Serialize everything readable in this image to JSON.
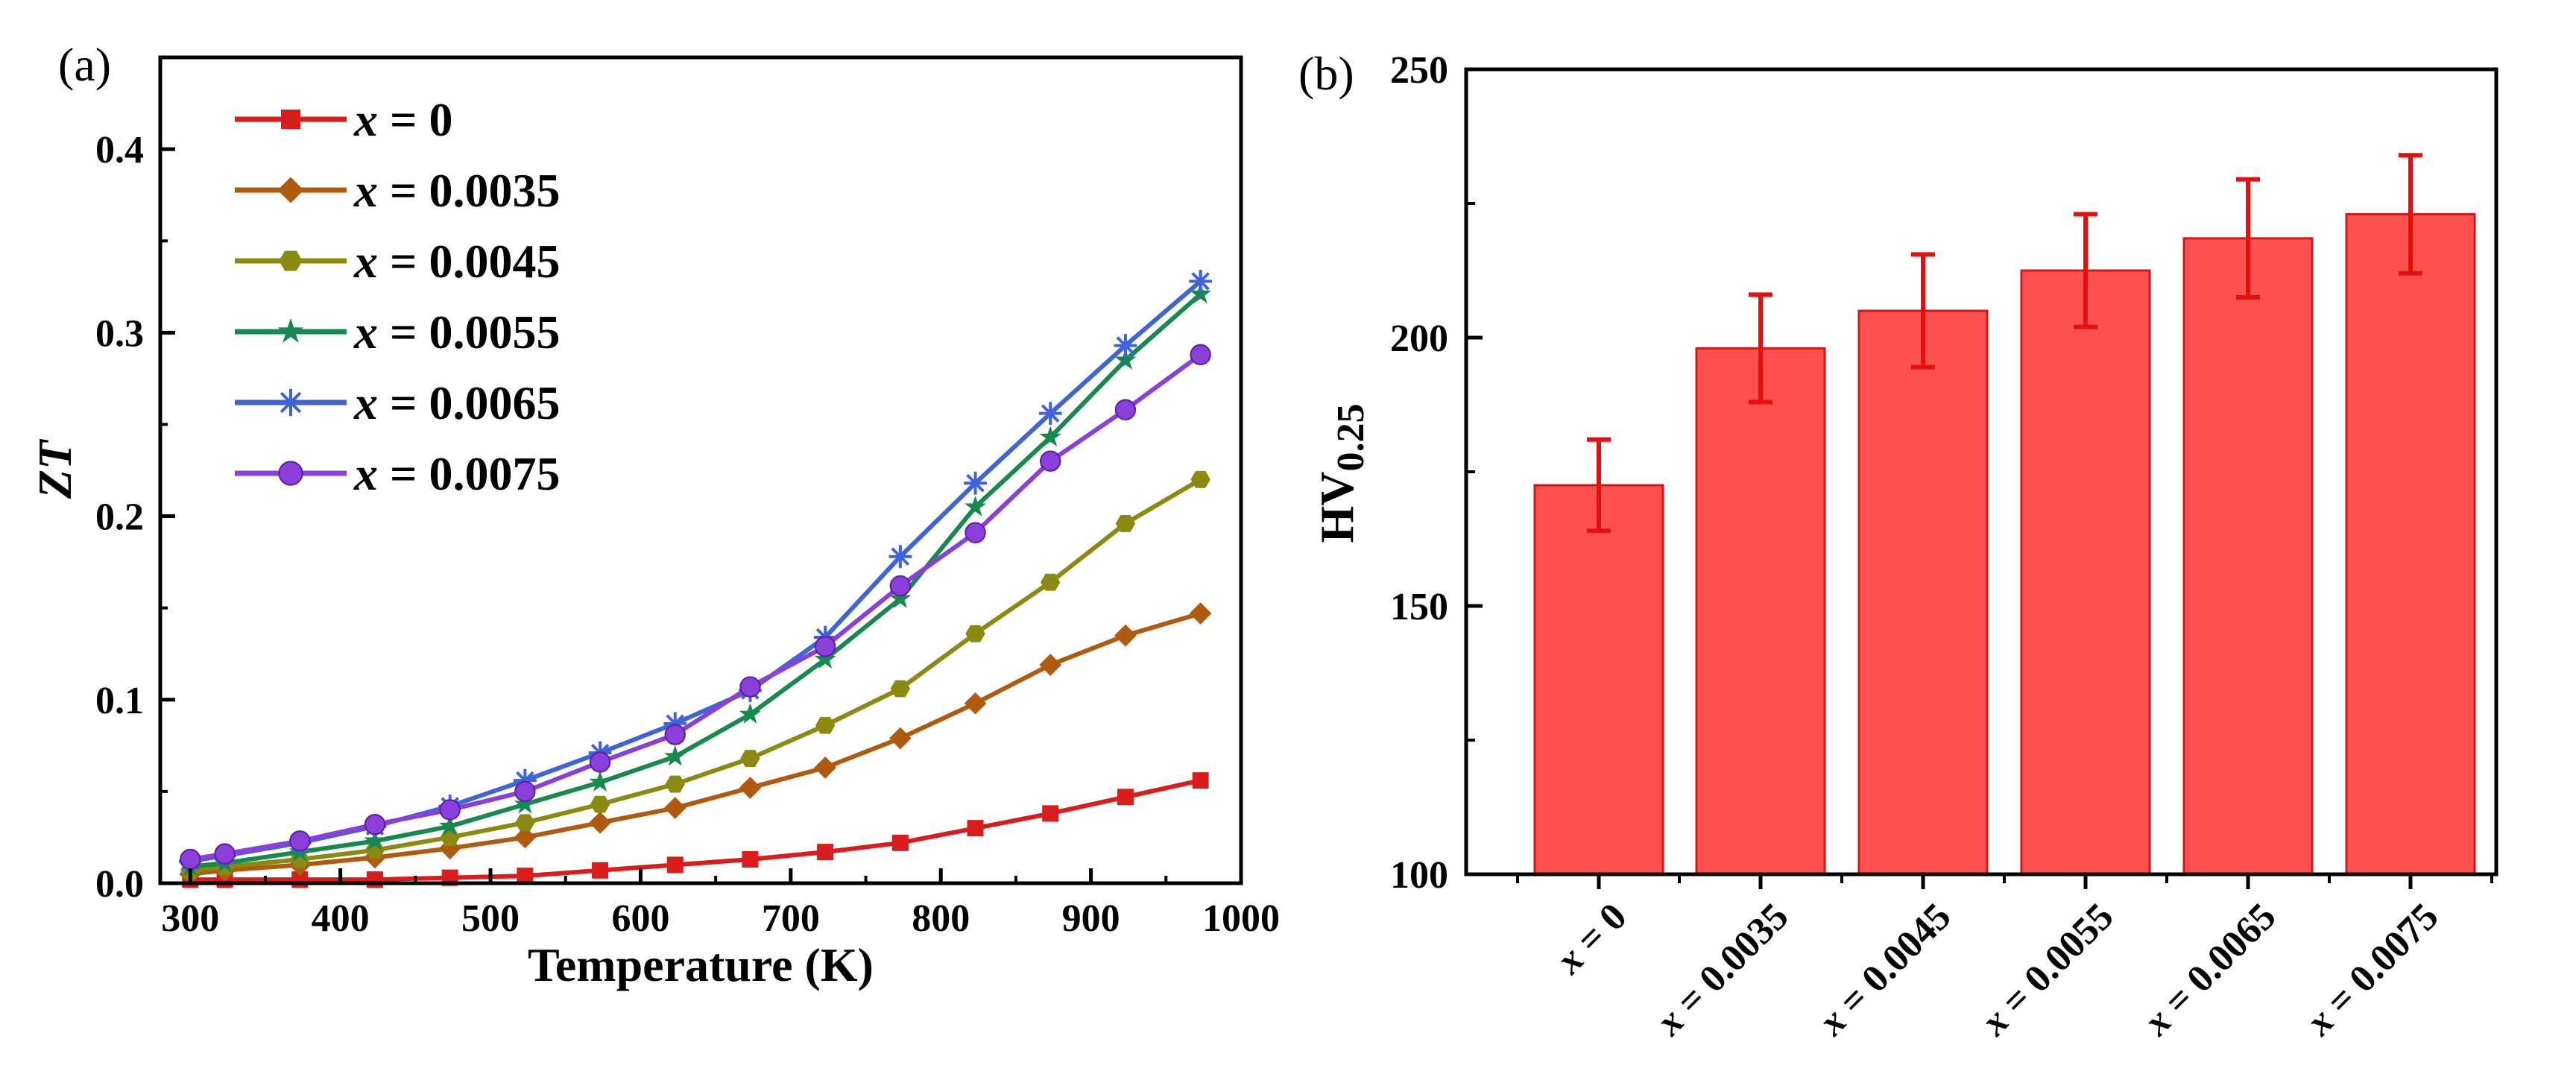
{
  "chart_data": [
    {
      "panel": "(a)",
      "type": "line",
      "xlabel": "Temperature (K)",
      "ylabel": "ZT",
      "xlim": [
        280,
        1000
      ],
      "ylim": [
        0,
        0.45
      ],
      "xticks": [
        "300",
        "400",
        "500",
        "600",
        "700",
        "800",
        "900",
        "1000"
      ],
      "yticks": [
        "0.0",
        "0.1",
        "0.2",
        "0.3",
        "0.4"
      ],
      "legend_position": "top-left",
      "x": [
        300,
        323,
        373,
        423,
        473,
        523,
        573,
        623,
        673,
        723,
        773,
        823,
        873,
        923,
        973
      ],
      "series": [
        {
          "name_var": "x",
          "name_val": " = 0",
          "color": "#d91c1c",
          "marker": "square",
          "values": [
            0.002,
            0.002,
            0.002,
            0.002,
            0.003,
            0.004,
            0.007,
            0.01,
            0.013,
            0.017,
            0.022,
            0.03,
            0.038,
            0.047,
            0.056
          ]
        },
        {
          "name_var": "x",
          "name_val": " = 0.0035",
          "color": "#b05a10",
          "marker": "diamond",
          "values": [
            0.005,
            0.007,
            0.01,
            0.014,
            0.019,
            0.025,
            0.033,
            0.041,
            0.052,
            0.063,
            0.079,
            0.098,
            0.119,
            0.135,
            0.147
          ]
        },
        {
          "name_var": "x",
          "name_val": " = 0.0045",
          "color": "#8a8a10",
          "marker": "hexagon",
          "values": [
            0.007,
            0.009,
            0.013,
            0.018,
            0.025,
            0.033,
            0.043,
            0.054,
            0.068,
            0.086,
            0.106,
            0.136,
            0.164,
            0.196,
            0.22
          ]
        },
        {
          "name_var": "x",
          "name_val": " = 0.0055",
          "color": "#17894f",
          "marker": "star",
          "values": [
            0.009,
            0.011,
            0.017,
            0.023,
            0.031,
            0.043,
            0.055,
            0.069,
            0.092,
            0.122,
            0.155,
            0.205,
            0.243,
            0.285,
            0.321
          ]
        },
        {
          "name_var": "x",
          "name_val": " = 0.0065",
          "color": "#3f63d8",
          "marker": "asterisk",
          "values": [
            0.012,
            0.015,
            0.022,
            0.031,
            0.042,
            0.056,
            0.071,
            0.087,
            0.105,
            0.134,
            0.178,
            0.218,
            0.256,
            0.293,
            0.328
          ]
        },
        {
          "name_var": "x",
          "name_val": " = 0.0075",
          "color": "#8a3fdb",
          "marker": "circle",
          "values": [
            0.013,
            0.016,
            0.023,
            0.032,
            0.04,
            0.05,
            0.066,
            0.081,
            0.107,
            0.129,
            0.162,
            0.191,
            0.23,
            0.258,
            0.288
          ]
        }
      ]
    },
    {
      "panel": "(b)",
      "type": "bar",
      "ylabel_main": "HV",
      "ylabel_sub": "0.25",
      "ylim": [
        100,
        250
      ],
      "yticks": [
        "100",
        "150",
        "200",
        "250"
      ],
      "bar_color": "#ff5050",
      "error_color": "#e31010",
      "categories": [
        {
          "var": "x",
          "val": " = 0"
        },
        {
          "var": "x",
          "val": " = 0.0035"
        },
        {
          "var": "x",
          "val": " = 0.0045"
        },
        {
          "var": "x",
          "val": " = 0.0055"
        },
        {
          "var": "x",
          "val": " = 0.0065"
        },
        {
          "var": "x",
          "val": " = 0.0075"
        }
      ],
      "values": [
        172.5,
        198,
        205,
        212.5,
        218.5,
        223
      ],
      "errors": [
        8.5,
        10,
        10.5,
        10.5,
        11,
        11
      ]
    }
  ]
}
